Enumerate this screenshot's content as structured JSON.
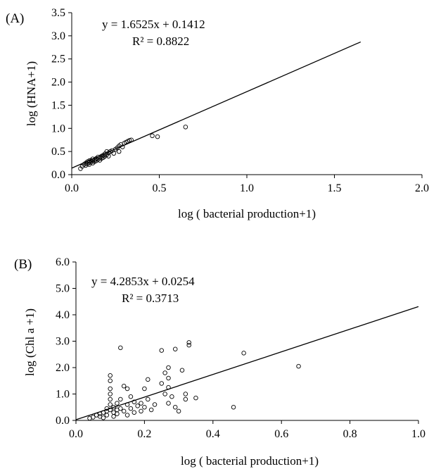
{
  "chart_data": [
    {
      "type": "scatter",
      "panel_label": "(A)",
      "xlabel": "log ( bacterial production+1)",
      "ylabel": "log (HNA+1)",
      "xlim": [
        0,
        2
      ],
      "ylim": [
        0,
        3.5
      ],
      "xticks": [
        "0.0",
        "0.5",
        "1.0",
        "1.5",
        "2.0"
      ],
      "yticks": [
        "0.0",
        "0.5",
        "1.0",
        "1.5",
        "2.0",
        "2.5",
        "3.0",
        "3.5"
      ],
      "equation": "y = 1.6525x + 0.1412",
      "r_squared": "R² = 0.8822",
      "trendline": {
        "slope": 1.6525,
        "intercept": 0.1412,
        "x_range": [
          0,
          1.65
        ]
      },
      "grid": false,
      "points": [
        {
          "x": 0.05,
          "y": 0.13
        },
        {
          "x": 0.06,
          "y": 0.18
        },
        {
          "x": 0.07,
          "y": 0.22
        },
        {
          "x": 0.08,
          "y": 0.2
        },
        {
          "x": 0.08,
          "y": 0.25
        },
        {
          "x": 0.09,
          "y": 0.23
        },
        {
          "x": 0.09,
          "y": 0.28
        },
        {
          "x": 0.1,
          "y": 0.26
        },
        {
          "x": 0.1,
          "y": 0.3
        },
        {
          "x": 0.1,
          "y": 0.22
        },
        {
          "x": 0.11,
          "y": 0.31
        },
        {
          "x": 0.11,
          "y": 0.27
        },
        {
          "x": 0.12,
          "y": 0.3
        },
        {
          "x": 0.12,
          "y": 0.34
        },
        {
          "x": 0.12,
          "y": 0.25
        },
        {
          "x": 0.13,
          "y": 0.32
        },
        {
          "x": 0.13,
          "y": 0.28
        },
        {
          "x": 0.14,
          "y": 0.35
        },
        {
          "x": 0.14,
          "y": 0.3
        },
        {
          "x": 0.15,
          "y": 0.33
        },
        {
          "x": 0.15,
          "y": 0.38
        },
        {
          "x": 0.16,
          "y": 0.36
        },
        {
          "x": 0.16,
          "y": 0.31
        },
        {
          "x": 0.17,
          "y": 0.4
        },
        {
          "x": 0.17,
          "y": 0.35
        },
        {
          "x": 0.18,
          "y": 0.42
        },
        {
          "x": 0.18,
          "y": 0.37
        },
        {
          "x": 0.19,
          "y": 0.45
        },
        {
          "x": 0.19,
          "y": 0.4
        },
        {
          "x": 0.2,
          "y": 0.43
        },
        {
          "x": 0.2,
          "y": 0.5
        },
        {
          "x": 0.21,
          "y": 0.47
        },
        {
          "x": 0.21,
          "y": 0.4
        },
        {
          "x": 0.22,
          "y": 0.5
        },
        {
          "x": 0.23,
          "y": 0.52
        },
        {
          "x": 0.24,
          "y": 0.46
        },
        {
          "x": 0.25,
          "y": 0.55
        },
        {
          "x": 0.26,
          "y": 0.58
        },
        {
          "x": 0.27,
          "y": 0.62
        },
        {
          "x": 0.27,
          "y": 0.5
        },
        {
          "x": 0.28,
          "y": 0.65
        },
        {
          "x": 0.29,
          "y": 0.6
        },
        {
          "x": 0.3,
          "y": 0.68
        },
        {
          "x": 0.31,
          "y": 0.7
        },
        {
          "x": 0.32,
          "y": 0.72
        },
        {
          "x": 0.33,
          "y": 0.74
        },
        {
          "x": 0.34,
          "y": 0.75
        },
        {
          "x": 0.46,
          "y": 0.84
        },
        {
          "x": 0.49,
          "y": 0.82
        },
        {
          "x": 0.65,
          "y": 1.03
        }
      ]
    },
    {
      "type": "scatter",
      "panel_label": "(B)",
      "xlabel": "log ( bacterial production+1)",
      "ylabel": "log (Chl a +1)",
      "xlim": [
        0,
        1
      ],
      "ylim": [
        0,
        6
      ],
      "xticks": [
        "0.0",
        "0.2",
        "0.4",
        "0.6",
        "0.8",
        "1.0"
      ],
      "yticks": [
        "0.0",
        "1.0",
        "2.0",
        "3.0",
        "4.0",
        "5.0",
        "6.0"
      ],
      "equation": "y = 4.2853x + 0.0254",
      "r_squared": "R² = 0.3713",
      "trendline": {
        "slope": 4.2853,
        "intercept": 0.0254,
        "x_range": [
          0,
          1
        ]
      },
      "grid": false,
      "points": [
        {
          "x": 0.04,
          "y": 0.08
        },
        {
          "x": 0.05,
          "y": 0.12
        },
        {
          "x": 0.06,
          "y": 0.2
        },
        {
          "x": 0.07,
          "y": 0.15
        },
        {
          "x": 0.07,
          "y": 0.25
        },
        {
          "x": 0.08,
          "y": 0.3
        },
        {
          "x": 0.08,
          "y": 0.1
        },
        {
          "x": 0.09,
          "y": 0.35
        },
        {
          "x": 0.09,
          "y": 0.2
        },
        {
          "x": 0.09,
          "y": 0.45
        },
        {
          "x": 0.1,
          "y": 0.4
        },
        {
          "x": 0.1,
          "y": 1.7
        },
        {
          "x": 0.1,
          "y": 1.5
        },
        {
          "x": 0.1,
          "y": 1.2
        },
        {
          "x": 0.1,
          "y": 1.0
        },
        {
          "x": 0.1,
          "y": 0.8
        },
        {
          "x": 0.1,
          "y": 0.6
        },
        {
          "x": 0.11,
          "y": 0.3
        },
        {
          "x": 0.11,
          "y": 0.5
        },
        {
          "x": 0.11,
          "y": 0.15
        },
        {
          "x": 0.12,
          "y": 0.4
        },
        {
          "x": 0.12,
          "y": 0.65
        },
        {
          "x": 0.12,
          "y": 0.25
        },
        {
          "x": 0.13,
          "y": 2.75
        },
        {
          "x": 0.13,
          "y": 0.8
        },
        {
          "x": 0.13,
          "y": 0.45
        },
        {
          "x": 0.14,
          "y": 0.35
        },
        {
          "x": 0.14,
          "y": 1.3
        },
        {
          "x": 0.15,
          "y": 1.2
        },
        {
          "x": 0.15,
          "y": 0.6
        },
        {
          "x": 0.15,
          "y": 0.2
        },
        {
          "x": 0.16,
          "y": 0.9
        },
        {
          "x": 0.16,
          "y": 0.45
        },
        {
          "x": 0.17,
          "y": 0.7
        },
        {
          "x": 0.17,
          "y": 0.3
        },
        {
          "x": 0.18,
          "y": 0.55
        },
        {
          "x": 0.19,
          "y": 0.65
        },
        {
          "x": 0.19,
          "y": 0.35
        },
        {
          "x": 0.2,
          "y": 1.2
        },
        {
          "x": 0.2,
          "y": 0.5
        },
        {
          "x": 0.21,
          "y": 1.55
        },
        {
          "x": 0.21,
          "y": 0.8
        },
        {
          "x": 0.22,
          "y": 0.4
        },
        {
          "x": 0.23,
          "y": 0.6
        },
        {
          "x": 0.25,
          "y": 2.65
        },
        {
          "x": 0.25,
          "y": 1.4
        },
        {
          "x": 0.26,
          "y": 1.8
        },
        {
          "x": 0.26,
          "y": 1.0
        },
        {
          "x": 0.27,
          "y": 2.0
        },
        {
          "x": 0.27,
          "y": 1.6
        },
        {
          "x": 0.27,
          "y": 1.25
        },
        {
          "x": 0.27,
          "y": 0.65
        },
        {
          "x": 0.28,
          "y": 0.9
        },
        {
          "x": 0.29,
          "y": 2.7
        },
        {
          "x": 0.29,
          "y": 0.5
        },
        {
          "x": 0.3,
          "y": 0.35
        },
        {
          "x": 0.31,
          "y": 1.9
        },
        {
          "x": 0.32,
          "y": 1.0
        },
        {
          "x": 0.32,
          "y": 0.8
        },
        {
          "x": 0.33,
          "y": 2.95
        },
        {
          "x": 0.33,
          "y": 2.85
        },
        {
          "x": 0.35,
          "y": 0.85
        },
        {
          "x": 0.46,
          "y": 0.5
        },
        {
          "x": 0.49,
          "y": 2.55
        },
        {
          "x": 0.65,
          "y": 2.05
        }
      ]
    }
  ]
}
